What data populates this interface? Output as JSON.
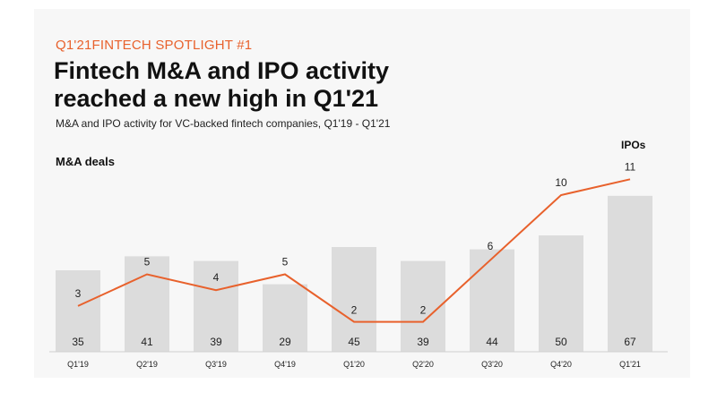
{
  "header": {
    "kicker": "Q1'21FINTECH SPOTLIGHT #1",
    "title_line1": "Fintech M&A and IPO activity",
    "title_line2": "reached a new high in Q1'21",
    "subtitle": "M&A and IPO activity for VC-backed fintech companies, Q1'19 - Q1'21"
  },
  "colors": {
    "bar": "#dcdcdc",
    "line": "#e8612c",
    "text": "#222222"
  },
  "chart_data": {
    "type": "bar",
    "categories": [
      "Q1'19",
      "Q2'19",
      "Q3'19",
      "Q4'19",
      "Q1'20",
      "Q2'20",
      "Q3'20",
      "Q4'20",
      "Q1'21"
    ],
    "series": [
      {
        "name": "M&A deals",
        "type": "bar",
        "values": [
          35,
          41,
          39,
          29,
          45,
          39,
          44,
          50,
          67
        ]
      },
      {
        "name": "IPOs",
        "type": "line",
        "values": [
          3,
          5,
          4,
          5,
          2,
          2,
          6,
          10,
          11
        ]
      }
    ],
    "legend": "series labels printed near top-left and top-right of the plot",
    "grid": false
  }
}
